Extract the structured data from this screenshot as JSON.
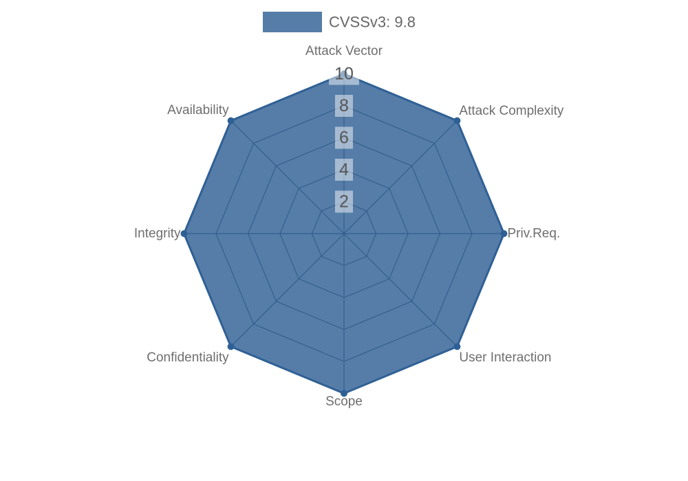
{
  "legend": {
    "position": "top",
    "items": [
      {
        "label": "CVSSv3: 9.8"
      }
    ]
  },
  "chart_data": {
    "type": "radar",
    "title": "",
    "categories": [
      "Attack Vector",
      "Attack Complexity",
      "Priv.Req.",
      "User Interaction",
      "Scope",
      "Confidentiality",
      "Integrity",
      "Availability"
    ],
    "series": [
      {
        "name": "CVSSv3: 9.8",
        "values": [
          10,
          10,
          10,
          10,
          10,
          10,
          10,
          10
        ]
      }
    ],
    "ticks": [
      2,
      4,
      6,
      8,
      10
    ],
    "rmin": 0,
    "rmax": 10,
    "grid": true,
    "grid_shape": "polygon",
    "legend_position": "top"
  },
  "colors": {
    "background": "#ffffff",
    "series_fill": "rgba(47,96,149,0.82)",
    "series_stroke": "#2f6095",
    "marker_fill": "#2f6095",
    "grid_line": "#4a5563",
    "axis_label": "#6e6e6e",
    "tick_label": "#555555",
    "tick_backdrop": "rgba(255,255,255,0.48)",
    "legend_text": "#666666"
  }
}
